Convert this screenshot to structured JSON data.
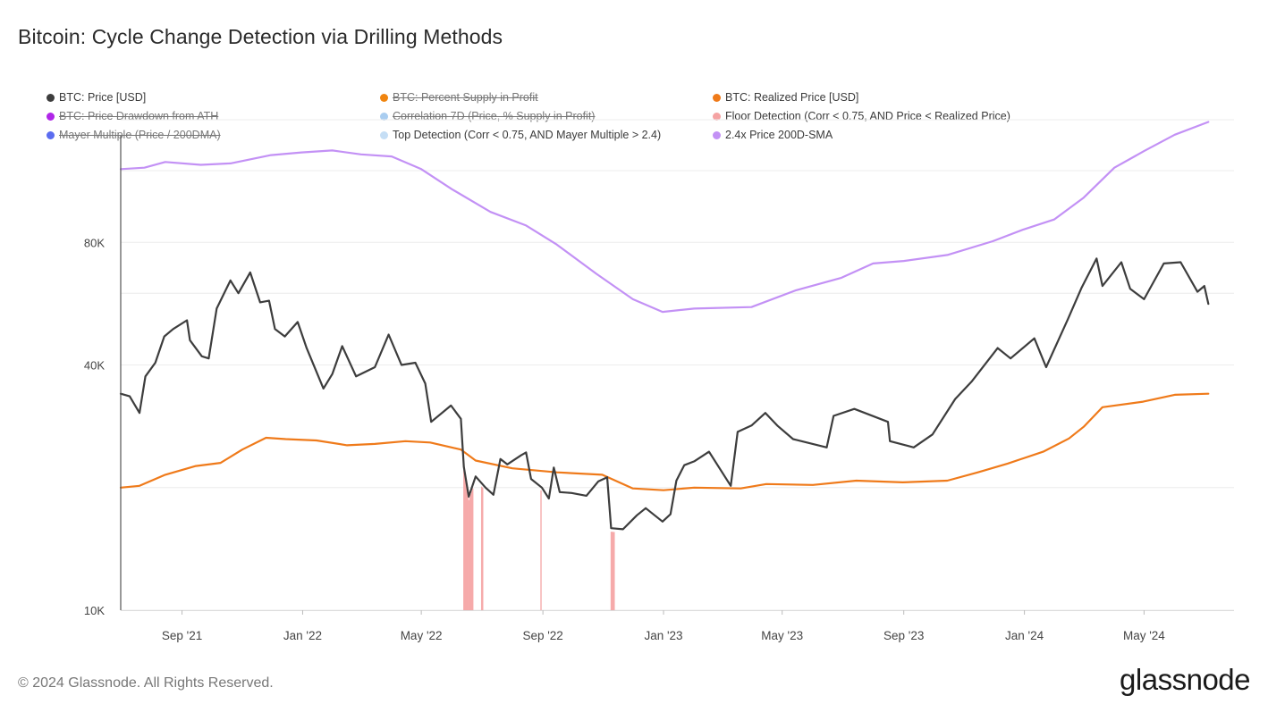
{
  "title": "Bitcoin: Cycle Change Detection via Drilling Methods",
  "footer": "© 2024 Glassnode. All Rights Reserved.",
  "brand": "glassnode",
  "legend": [
    {
      "label": "BTC: Price [USD]",
      "color": "#3d3d3d",
      "active": true
    },
    {
      "label": "BTC: Percent Supply in Profit",
      "color": "#f0850f",
      "active": false
    },
    {
      "label": "BTC: Realized Price [USD]",
      "color": "#ef7a1a",
      "active": true
    },
    {
      "label": "BTC: Price Drawdown from ATH",
      "color": "#b026e8",
      "active": false
    },
    {
      "label": "Correlation 7D (Price, % Supply in Profit)",
      "color": "#a9cdf0",
      "active": false
    },
    {
      "label": "Floor Detection (Corr < 0.75, AND Price < Realized Price)",
      "color": "#f5a3a3",
      "active": true
    },
    {
      "label": "Mayer Multiple (Price / 200DMA)",
      "color": "#5b6cf0",
      "active": false
    },
    {
      "label": "Top Detection (Corr < 0.75, AND Mayer Multiple > 2.4)",
      "color": "#c5def5",
      "active": true
    },
    {
      "label": "2.4x Price 200D-SMA",
      "color": "#c391f5",
      "active": true
    }
  ],
  "chart_data": {
    "type": "line",
    "y_scale": "log",
    "ylim": [
      10000,
      170000
    ],
    "xlim": [
      "2021-07-01",
      "2024-07-31"
    ],
    "y_ticks": [
      {
        "value": 10000,
        "label": "10K"
      },
      {
        "value": 40000,
        "label": "40K"
      },
      {
        "value": 80000,
        "label": "80K"
      }
    ],
    "x_ticks": [
      {
        "date": "2021-09-01",
        "label": "Sep '21"
      },
      {
        "date": "2022-01-01",
        "label": "Jan '22"
      },
      {
        "date": "2022-05-01",
        "label": "May '22"
      },
      {
        "date": "2022-09-01",
        "label": "Sep '22"
      },
      {
        "date": "2023-01-01",
        "label": "Jan '23"
      },
      {
        "date": "2023-05-01",
        "label": "May '23"
      },
      {
        "date": "2023-09-01",
        "label": "Sep '23"
      },
      {
        "date": "2024-01-01",
        "label": "Jan '24"
      },
      {
        "date": "2024-05-01",
        "label": "May '24"
      }
    ],
    "series": [
      {
        "name": "BTC: Price [USD]",
        "color": "#3d3d3d",
        "points": [
          [
            "2021-07-01",
            34000
          ],
          [
            "2021-07-10",
            33500
          ],
          [
            "2021-07-20",
            30500
          ],
          [
            "2021-07-26",
            37500
          ],
          [
            "2021-08-05",
            40500
          ],
          [
            "2021-08-14",
            47000
          ],
          [
            "2021-08-23",
            49000
          ],
          [
            "2021-09-06",
            51500
          ],
          [
            "2021-09-09",
            46000
          ],
          [
            "2021-09-21",
            42000
          ],
          [
            "2021-09-28",
            41500
          ],
          [
            "2021-10-06",
            55000
          ],
          [
            "2021-10-20",
            64500
          ],
          [
            "2021-10-28",
            60000
          ],
          [
            "2021-11-09",
            67500
          ],
          [
            "2021-11-19",
            57000
          ],
          [
            "2021-11-28",
            57500
          ],
          [
            "2021-12-04",
            49000
          ],
          [
            "2021-12-14",
            47000
          ],
          [
            "2021-12-27",
            51000
          ],
          [
            "2022-01-05",
            44000
          ],
          [
            "2022-01-22",
            35000
          ],
          [
            "2022-01-31",
            38000
          ],
          [
            "2022-02-10",
            44500
          ],
          [
            "2022-02-24",
            37500
          ],
          [
            "2022-03-15",
            39500
          ],
          [
            "2022-03-29",
            47500
          ],
          [
            "2022-04-11",
            40000
          ],
          [
            "2022-04-25",
            40500
          ],
          [
            "2022-05-05",
            36000
          ],
          [
            "2022-05-11",
            29000
          ],
          [
            "2022-05-31",
            31800
          ],
          [
            "2022-06-10",
            29500
          ],
          [
            "2022-06-13",
            22500
          ],
          [
            "2022-06-18",
            19000
          ],
          [
            "2022-06-25",
            21300
          ],
          [
            "2022-07-05",
            20000
          ],
          [
            "2022-07-13",
            19200
          ],
          [
            "2022-07-20",
            23500
          ],
          [
            "2022-07-27",
            22800
          ],
          [
            "2022-08-10",
            24000
          ],
          [
            "2022-08-15",
            24400
          ],
          [
            "2022-08-20",
            21000
          ],
          [
            "2022-08-31",
            20000
          ],
          [
            "2022-09-07",
            18800
          ],
          [
            "2022-09-12",
            22400
          ],
          [
            "2022-09-18",
            19500
          ],
          [
            "2022-09-30",
            19400
          ],
          [
            "2022-10-15",
            19100
          ],
          [
            "2022-10-27",
            20700
          ],
          [
            "2022-11-05",
            21200
          ],
          [
            "2022-11-09",
            15900
          ],
          [
            "2022-11-21",
            15800
          ],
          [
            "2022-12-05",
            17100
          ],
          [
            "2022-12-14",
            17800
          ],
          [
            "2022-12-31",
            16500
          ],
          [
            "2023-01-08",
            17200
          ],
          [
            "2023-01-14",
            20800
          ],
          [
            "2023-01-22",
            22700
          ],
          [
            "2023-02-01",
            23200
          ],
          [
            "2023-02-16",
            24500
          ],
          [
            "2023-03-10",
            20200
          ],
          [
            "2023-03-17",
            27400
          ],
          [
            "2023-03-31",
            28400
          ],
          [
            "2023-04-14",
            30500
          ],
          [
            "2023-04-26",
            28400
          ],
          [
            "2023-05-12",
            26300
          ],
          [
            "2023-06-15",
            25100
          ],
          [
            "2023-06-22",
            30000
          ],
          [
            "2023-07-13",
            31200
          ],
          [
            "2023-08-16",
            29000
          ],
          [
            "2023-08-18",
            26000
          ],
          [
            "2023-09-11",
            25100
          ],
          [
            "2023-09-30",
            27000
          ],
          [
            "2023-10-23",
            33000
          ],
          [
            "2023-11-09",
            36500
          ],
          [
            "2023-12-05",
            44000
          ],
          [
            "2023-12-18",
            41500
          ],
          [
            "2024-01-11",
            46500
          ],
          [
            "2024-01-23",
            39500
          ],
          [
            "2024-02-14",
            51800
          ],
          [
            "2024-02-28",
            62000
          ],
          [
            "2024-03-14",
            73000
          ],
          [
            "2024-03-20",
            62500
          ],
          [
            "2024-04-08",
            71500
          ],
          [
            "2024-04-17",
            61500
          ],
          [
            "2024-05-01",
            58000
          ],
          [
            "2024-05-21",
            71000
          ],
          [
            "2024-06-07",
            71500
          ],
          [
            "2024-06-24",
            60500
          ],
          [
            "2024-07-01",
            62500
          ],
          [
            "2024-07-05",
            56500
          ]
        ]
      },
      {
        "name": "BTC: Realized Price [USD]",
        "color": "#ef7a1a",
        "points": [
          [
            "2021-07-01",
            20000
          ],
          [
            "2021-07-20",
            20200
          ],
          [
            "2021-08-15",
            21500
          ],
          [
            "2021-09-15",
            22600
          ],
          [
            "2021-10-10",
            23000
          ],
          [
            "2021-11-01",
            24800
          ],
          [
            "2021-11-25",
            26500
          ],
          [
            "2021-12-15",
            26300
          ],
          [
            "2022-01-15",
            26100
          ],
          [
            "2022-02-15",
            25400
          ],
          [
            "2022-03-15",
            25600
          ],
          [
            "2022-04-15",
            26000
          ],
          [
            "2022-05-10",
            25800
          ],
          [
            "2022-06-10",
            24800
          ],
          [
            "2022-06-25",
            23300
          ],
          [
            "2022-08-01",
            22300
          ],
          [
            "2022-09-15",
            21800
          ],
          [
            "2022-10-31",
            21500
          ],
          [
            "2022-12-01",
            19900
          ],
          [
            "2023-01-01",
            19700
          ],
          [
            "2023-02-01",
            20000
          ],
          [
            "2023-03-20",
            19900
          ],
          [
            "2023-04-15",
            20400
          ],
          [
            "2023-06-01",
            20300
          ],
          [
            "2023-07-15",
            20800
          ],
          [
            "2023-08-31",
            20600
          ],
          [
            "2023-10-15",
            20800
          ],
          [
            "2023-11-15",
            21800
          ],
          [
            "2023-12-15",
            22900
          ],
          [
            "2024-01-20",
            24500
          ],
          [
            "2024-02-15",
            26400
          ],
          [
            "2024-03-01",
            28200
          ],
          [
            "2024-03-20",
            31500
          ],
          [
            "2024-04-30",
            32500
          ],
          [
            "2024-06-01",
            33800
          ],
          [
            "2024-07-05",
            34000
          ]
        ]
      },
      {
        "name": "2.4x Price 200D-SMA",
        "color": "#c391f5",
        "points": [
          [
            "2021-07-01",
            121000
          ],
          [
            "2021-07-25",
            122000
          ],
          [
            "2021-08-15",
            126000
          ],
          [
            "2021-09-20",
            124000
          ],
          [
            "2021-10-20",
            125000
          ],
          [
            "2021-11-30",
            131000
          ],
          [
            "2021-12-31",
            133000
          ],
          [
            "2022-01-31",
            134500
          ],
          [
            "2022-03-01",
            131500
          ],
          [
            "2022-04-01",
            130000
          ],
          [
            "2022-05-01",
            121000
          ],
          [
            "2022-06-01",
            108000
          ],
          [
            "2022-07-10",
            95000
          ],
          [
            "2022-08-15",
            88000
          ],
          [
            "2022-09-15",
            79000
          ],
          [
            "2022-10-25",
            67000
          ],
          [
            "2022-12-01",
            58000
          ],
          [
            "2022-12-31",
            54000
          ],
          [
            "2023-02-01",
            55000
          ],
          [
            "2023-03-31",
            55500
          ],
          [
            "2023-05-15",
            61000
          ],
          [
            "2023-06-30",
            65500
          ],
          [
            "2023-08-01",
            71000
          ],
          [
            "2023-09-01",
            72000
          ],
          [
            "2023-10-15",
            74500
          ],
          [
            "2023-11-30",
            80500
          ],
          [
            "2023-12-31",
            86000
          ],
          [
            "2024-01-31",
            91000
          ],
          [
            "2024-03-01",
            103000
          ],
          [
            "2024-04-01",
            122000
          ],
          [
            "2024-05-01",
            134000
          ],
          [
            "2024-06-01",
            147000
          ],
          [
            "2024-07-05",
            158000
          ]
        ]
      }
    ],
    "floor_detection_dates": [
      "2022-06-13",
      "2022-06-14",
      "2022-06-15",
      "2022-06-16",
      "2022-06-17",
      "2022-06-18",
      "2022-06-19",
      "2022-06-20",
      "2022-06-21",
      "2022-06-22",
      "2022-07-01",
      "2022-07-02",
      "2022-08-30",
      "2022-11-09",
      "2022-11-10",
      "2022-11-11",
      "2022-11-12"
    ]
  }
}
